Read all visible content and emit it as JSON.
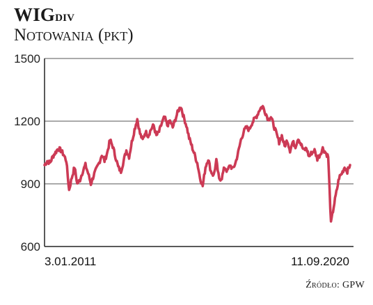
{
  "header": {
    "title_main": "WIG",
    "title_sub": "div",
    "subtitle": "Notowania (pkt)"
  },
  "source": "Źródło: GPW",
  "colors": {
    "line": "#cc3a55",
    "grid": "#555555",
    "axis": "#222222"
  },
  "chart_data": {
    "type": "line",
    "title": "WIGdiv",
    "subtitle": "Notowania (pkt)",
    "ylabel": "",
    "xlabel": "",
    "ylim": [
      600,
      1500
    ],
    "yticks": [
      "1500",
      "1200",
      "900",
      "600"
    ],
    "ytick_values": [
      1500,
      1200,
      900,
      600
    ],
    "grid": true,
    "x_labels": {
      "start": "3.01.2011",
      "end": "11.09.2020"
    },
    "series": [
      {
        "values": [
          990,
          1010,
          1000,
          1030,
          1050,
          1070,
          1060,
          1040,
          1010,
          870,
          930,
          980,
          900,
          920,
          960,
          990,
          950,
          900,
          940,
          970,
          1000,
          1040,
          1010,
          1050,
          1110,
          1080,
          1030,
          980,
          960,
          1010,
          1060,
          1030,
          1100,
          1160,
          1210,
          1140,
          1110,
          1150,
          1130,
          1160,
          1180,
          1130,
          1150,
          1190,
          1220,
          1180,
          1200,
          1170,
          1210,
          1250,
          1270,
          1220,
          1180,
          1120,
          1080,
          1040,
          1000,
          930,
          890,
          980,
          1020,
          960,
          940,
          1010,
          920,
          930,
          980,
          960,
          990,
          970,
          1000,
          1050,
          1110,
          1150,
          1170,
          1160,
          1190,
          1210,
          1230,
          1260,
          1270,
          1240,
          1210,
          1220,
          1180,
          1140,
          1100,
          1130,
          1080,
          1110,
          1060,
          1100,
          1080,
          1120,
          1090,
          1060,
          1070,
          1030,
          1050,
          1060,
          1020,
          1040,
          1070,
          1050,
          1030,
          710,
          790,
          860,
          930,
          950,
          980,
          960,
          990
        ]
      }
    ]
  }
}
